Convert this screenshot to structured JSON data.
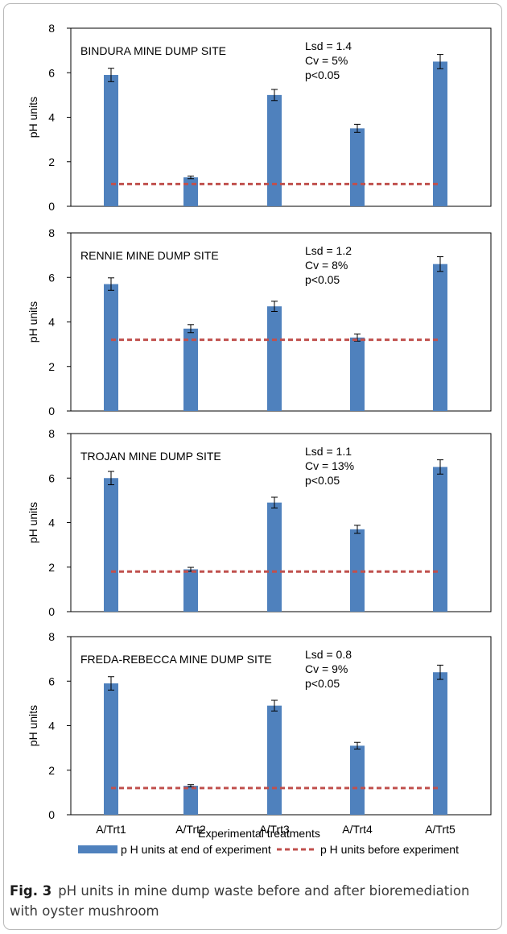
{
  "chart_data": [
    {
      "type": "bar",
      "title": "BINDURA MINE DUMP SITE",
      "stats": [
        "Lsd = 1.4",
        "Cv =  5%",
        "p<0.05"
      ],
      "ylabel": "pH units",
      "ylim": [
        0,
        8
      ],
      "yticks": [
        "0",
        "2",
        "4",
        "6",
        "8"
      ],
      "categories": [
        "A/Trt1",
        "A/Trt2",
        "A/Trt3",
        "A/Trt4",
        "A/Trt5"
      ],
      "series": [
        {
          "name": "p H units at end of experiment",
          "values": [
            5.9,
            1.3,
            5.0,
            3.5,
            6.5
          ],
          "errors": [
            0.3,
            0.06,
            0.25,
            0.18,
            0.32
          ]
        },
        {
          "name": "p H units before experiment",
          "values": [
            1.0,
            1.0,
            1.0,
            1.0,
            1.0
          ]
        }
      ]
    },
    {
      "type": "bar",
      "title": "RENNIE MINE DUMP SITE",
      "stats": [
        "Lsd = 1.2",
        "Cv =  8%",
        "p<0.05"
      ],
      "ylabel": "pH units",
      "ylim": [
        0,
        8
      ],
      "yticks": [
        "0",
        "2",
        "4",
        "6",
        "8"
      ],
      "categories": [
        "A/Trt1",
        "A/Trt2",
        "A/Trt3",
        "A/Trt4",
        "A/Trt5"
      ],
      "series": [
        {
          "name": "p H units at end of experiment",
          "values": [
            5.7,
            3.7,
            4.7,
            3.3,
            6.6
          ],
          "errors": [
            0.28,
            0.18,
            0.23,
            0.16,
            0.33
          ]
        },
        {
          "name": "p H units before experiment",
          "values": [
            3.2,
            3.2,
            3.2,
            3.2,
            3.2
          ]
        }
      ]
    },
    {
      "type": "bar",
      "title": "TROJAN MINE DUMP SITE",
      "stats": [
        "Lsd = 1.1",
        "Cv =  13%",
        "p<0.05"
      ],
      "ylabel": "pH units",
      "ylim": [
        0,
        8
      ],
      "yticks": [
        "0",
        "2",
        "4",
        "6",
        "8"
      ],
      "categories": [
        "A/Trt1",
        "A/Trt2",
        "A/Trt3",
        "A/Trt4",
        "A/Trt5"
      ],
      "series": [
        {
          "name": "p H units at end of experiment",
          "values": [
            6.0,
            1.9,
            4.9,
            3.7,
            6.5
          ],
          "errors": [
            0.3,
            0.09,
            0.24,
            0.18,
            0.32
          ]
        },
        {
          "name": "p H units before experiment",
          "values": [
            1.8,
            1.8,
            1.8,
            1.8,
            1.8
          ]
        }
      ]
    },
    {
      "type": "bar",
      "title": "FREDA-REBECCA MINE DUMP SITE",
      "stats": [
        "Lsd = 0.8",
        "Cv =  9%",
        "p<0.05"
      ],
      "ylabel": "pH units",
      "ylim": [
        0,
        8
      ],
      "yticks": [
        "0",
        "2",
        "4",
        "6",
        "8"
      ],
      "categories": [
        "A/Trt1",
        "A/Trt2",
        "A/Trt3",
        "A/Trt4",
        "A/Trt5"
      ],
      "series": [
        {
          "name": "p H units at end of experiment",
          "values": [
            5.9,
            1.3,
            4.9,
            3.1,
            6.4
          ],
          "errors": [
            0.3,
            0.05,
            0.24,
            0.15,
            0.32
          ]
        },
        {
          "name": "p H units before experiment",
          "values": [
            1.2,
            1.2,
            1.2,
            1.2,
            1.2
          ]
        }
      ]
    }
  ],
  "xlabel": "Experimental treatments",
  "legend": {
    "placement": "bottom",
    "items": [
      {
        "label": "p H units at end of experiment",
        "color": "#4F81BD"
      },
      {
        "label": "p H units before experiment",
        "color": "#C0504D"
      }
    ]
  },
  "colors": {
    "bar": "#4F81BD",
    "baseline": "#C0504D"
  },
  "caption": {
    "label": "Fig. 3",
    "text": "pH units in mine dump waste before and after bioremediation with oyster mushroom"
  }
}
